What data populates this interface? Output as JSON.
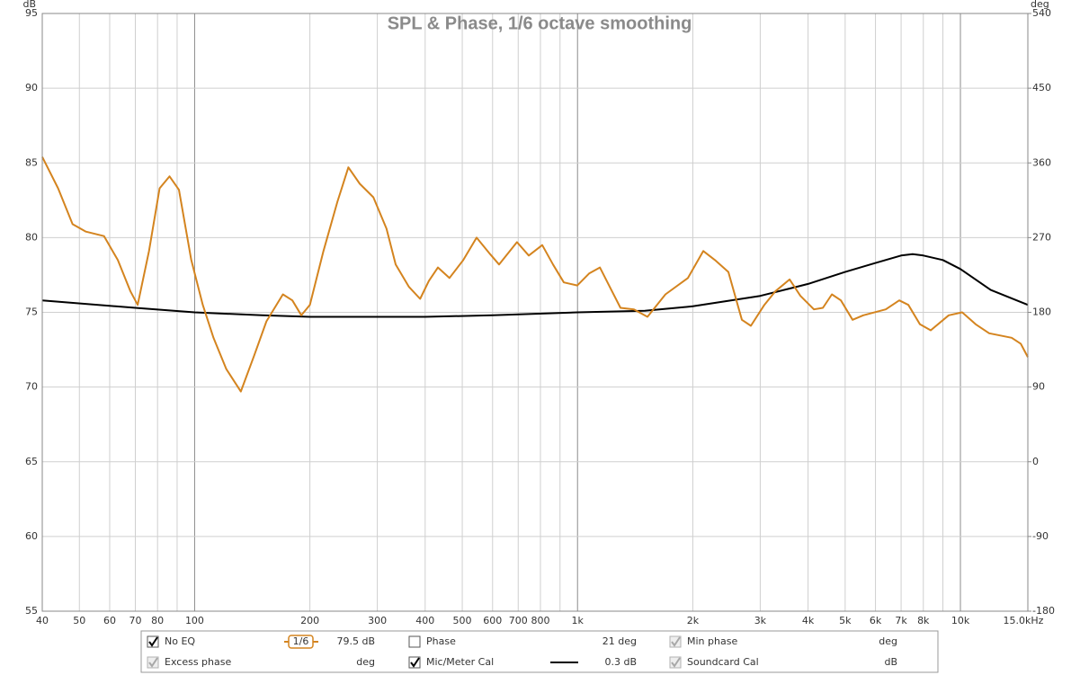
{
  "chart_data": {
    "type": "line",
    "title": "SPL & Phase, 1/6 octave smoothing",
    "ylabel": "dB",
    "y2label": "deg",
    "xscale": "log",
    "grid": true,
    "xlim": [
      40,
      15000
    ],
    "ylim": [
      55,
      95
    ],
    "y2lim": [
      -180,
      540
    ],
    "xticks": [
      40,
      50,
      60,
      70,
      80,
      100,
      200,
      300,
      400,
      500,
      600,
      700,
      800,
      {
        "value": 1000,
        "label": "1k"
      },
      {
        "value": 2000,
        "label": "2k"
      },
      {
        "value": 3000,
        "label": "3k"
      },
      {
        "value": 4000,
        "label": "4k"
      },
      {
        "value": 5000,
        "label": "5k"
      },
      {
        "value": 6000,
        "label": "6k"
      },
      {
        "value": 7000,
        "label": "7k"
      },
      {
        "value": 8000,
        "label": "8k"
      },
      {
        "value": 10000,
        "label": "10k"
      },
      {
        "value": 15000,
        "label": "15.0kHz"
      }
    ],
    "xminor": [
      90,
      900,
      9000
    ],
    "yticks": [
      55,
      60,
      65,
      70,
      75,
      80,
      85,
      90,
      95
    ],
    "y2ticks": [
      -180,
      -90,
      0,
      90,
      180,
      270,
      360,
      450,
      540
    ],
    "smoothing": "1/6",
    "series": [
      {
        "name": "No EQ",
        "color": "#d4841f",
        "checked": true,
        "readout": "79.5 dB",
        "x": [
          40,
          44,
          48,
          52,
          58,
          63,
          68,
          71,
          76,
          81,
          86,
          91,
          98,
          105,
          112,
          121,
          132,
          143,
          154,
          170,
          180,
          190,
          200,
          217,
          236,
          252,
          270,
          293,
          317,
          335,
          363,
          388,
          409,
          432,
          463,
          503,
          545,
          591,
          624,
          695,
          746,
          809,
          863,
          921,
          999,
          1072,
          1144,
          1214,
          1295,
          1404,
          1523,
          1697,
          1942,
          2130,
          2284,
          2478,
          2687,
          2836,
          3076,
          3283,
          3580,
          3820,
          4143,
          4373,
          4616,
          4873,
          5229,
          5577,
          6383,
          6923,
          7309,
          7840,
          8365,
          9320,
          10108,
          10960,
          11888,
          13611,
          14374,
          15000
        ],
        "values": [
          85.4,
          83.3,
          80.9,
          80.4,
          80.1,
          78.5,
          76.4,
          75.5,
          79.1,
          83.3,
          84.1,
          83.2,
          78.5,
          75.5,
          73.3,
          71.2,
          69.7,
          72.1,
          74.4,
          76.2,
          75.8,
          74.8,
          75.5,
          79.1,
          82.4,
          84.7,
          83.6,
          82.7,
          80.6,
          78.2,
          76.7,
          75.9,
          77.1,
          78.0,
          77.3,
          78.5,
          80.0,
          78.9,
          78.2,
          79.7,
          78.8,
          79.5,
          78.2,
          77.0,
          76.8,
          77.6,
          78.0,
          76.7,
          75.3,
          75.2,
          74.7,
          76.2,
          77.3,
          79.1,
          78.5,
          77.7,
          74.5,
          74.1,
          75.5,
          76.4,
          77.2,
          76.1,
          75.2,
          75.3,
          76.2,
          75.8,
          74.5,
          74.8,
          75.2,
          75.8,
          75.5,
          74.2,
          73.8,
          74.8,
          75.0,
          74.2,
          73.6,
          73.3,
          72.9,
          72.0
        ]
      },
      {
        "name": "Mic/Meter Cal",
        "color": "#000000",
        "checked": true,
        "readout": "0.3 dB",
        "x": [
          40,
          70,
          100,
          150,
          200,
          300,
          400,
          600,
          1000,
          1500,
          2000,
          3000,
          4000,
          5000,
          6000,
          7000,
          7500,
          8000,
          9000,
          10000,
          12000,
          15000
        ],
        "values": [
          75.8,
          75.3,
          75.0,
          74.8,
          74.7,
          74.7,
          74.7,
          74.8,
          75.0,
          75.1,
          75.4,
          76.1,
          76.9,
          77.7,
          78.3,
          78.8,
          78.9,
          78.8,
          78.5,
          77.9,
          76.5,
          75.5
        ]
      }
    ],
    "other_traces": [
      {
        "name": "Phase",
        "readout": "21 deg",
        "checked": false,
        "enabled": true,
        "color": "#d4841f"
      },
      {
        "name": "Min phase",
        "readout": "deg",
        "checked": true,
        "enabled": false,
        "color": "#a0a0a0"
      },
      {
        "name": "Excess phase",
        "readout": "deg",
        "checked": true,
        "enabled": false,
        "color": "#a0a0a0"
      },
      {
        "name": "Soundcard Cal",
        "readout": "dB",
        "checked": true,
        "enabled": false,
        "color": "#a0a0a0"
      }
    ]
  }
}
